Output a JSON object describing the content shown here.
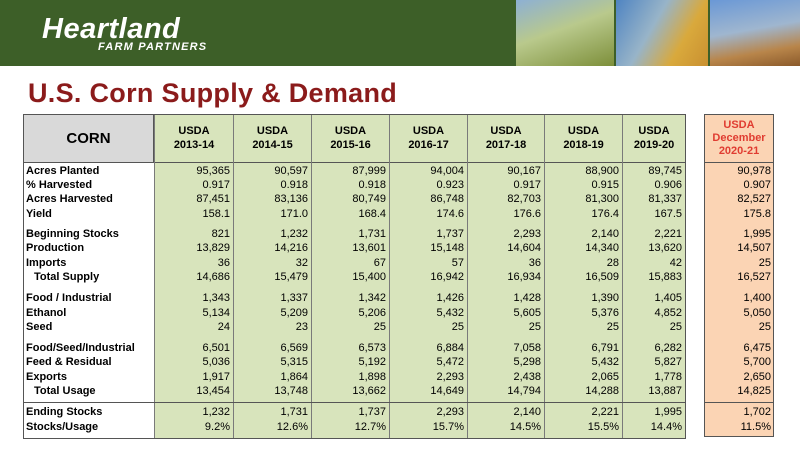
{
  "header": {
    "brand": "Heartland",
    "brand_sub": "FARM PARTNERS",
    "photos": [
      "cow-grazing-photo",
      "corn-ear-photo",
      "soybean-field-photo"
    ]
  },
  "title": "U.S. Corn Supply & Demand",
  "table": {
    "corner_label": "CORN",
    "columns": [
      {
        "line1": "USDA",
        "line2": "2013-14"
      },
      {
        "line1": "USDA",
        "line2": "2014-15"
      },
      {
        "line1": "USDA",
        "line2": "2015-16"
      },
      {
        "line1": "USDA",
        "line2": "2016-17"
      },
      {
        "line1": "USDA",
        "line2": "2017-18"
      },
      {
        "line1": "USDA",
        "line2": "2018-19"
      },
      {
        "line1": "USDA",
        "line2": "2019-20"
      }
    ],
    "projection_column": {
      "line1": "USDA",
      "line2": "December",
      "line3": "2020-21"
    },
    "rows": [
      {
        "label": "Acres Planted",
        "values": [
          "95,365",
          "90,597",
          "87,999",
          "94,004",
          "90,167",
          "88,900",
          "89,745"
        ],
        "projection": "90,978"
      },
      {
        "label": "% Harvested",
        "values": [
          "0.917",
          "0.918",
          "0.918",
          "0.923",
          "0.917",
          "0.915",
          "0.906"
        ],
        "projection": "0.907"
      },
      {
        "label": "Acres Harvested",
        "values": [
          "87,451",
          "83,136",
          "80,749",
          "86,748",
          "82,703",
          "81,300",
          "81,337"
        ],
        "projection": "82,527"
      },
      {
        "label": "Yield",
        "values": [
          "158.1",
          "171.0",
          "168.4",
          "174.6",
          "176.6",
          "176.4",
          "167.5"
        ],
        "projection": "175.8"
      },
      {
        "label": "Beginning Stocks",
        "values": [
          "821",
          "1,232",
          "1,731",
          "1,737",
          "2,293",
          "2,140",
          "2,221"
        ],
        "projection": "1,995"
      },
      {
        "label": "Production",
        "values": [
          "13,829",
          "14,216",
          "13,601",
          "15,148",
          "14,604",
          "14,340",
          "13,620"
        ],
        "projection": "14,507"
      },
      {
        "label": "Imports",
        "values": [
          "36",
          "32",
          "67",
          "57",
          "36",
          "28",
          "42"
        ],
        "projection": "25"
      },
      {
        "label": "Total Supply",
        "indent": true,
        "values": [
          "14,686",
          "15,479",
          "15,400",
          "16,942",
          "16,934",
          "16,509",
          "15,883"
        ],
        "projection": "16,527"
      },
      {
        "label": "Food / Industrial",
        "values": [
          "1,343",
          "1,337",
          "1,342",
          "1,426",
          "1,428",
          "1,390",
          "1,405"
        ],
        "projection": "1,400"
      },
      {
        "label": "Ethanol",
        "values": [
          "5,134",
          "5,209",
          "5,206",
          "5,432",
          "5,605",
          "5,376",
          "4,852"
        ],
        "projection": "5,050"
      },
      {
        "label": "Seed",
        "values": [
          "24",
          "23",
          "25",
          "25",
          "25",
          "25",
          "25"
        ],
        "projection": "25"
      },
      {
        "label": "Food/Seed/Industrial",
        "values": [
          "6,501",
          "6,569",
          "6,573",
          "6,884",
          "7,058",
          "6,791",
          "6,282"
        ],
        "projection": "6,475"
      },
      {
        "label": "Feed & Residual",
        "values": [
          "5,036",
          "5,315",
          "5,192",
          "5,472",
          "5,298",
          "5,432",
          "5,827"
        ],
        "projection": "5,700"
      },
      {
        "label": "Exports",
        "values": [
          "1,917",
          "1,864",
          "1,898",
          "2,293",
          "2,438",
          "2,065",
          "1,778"
        ],
        "projection": "2,650"
      },
      {
        "label": "Total Usage",
        "indent": true,
        "values": [
          "13,454",
          "13,748",
          "13,662",
          "14,649",
          "14,794",
          "14,288",
          "13,887"
        ],
        "projection": "14,825"
      },
      {
        "label": "Ending Stocks",
        "values": [
          "1,232",
          "1,731",
          "1,737",
          "2,293",
          "2,140",
          "2,221",
          "1,995"
        ],
        "projection": "1,702"
      },
      {
        "label": "Stocks/Usage",
        "values": [
          "9.2%",
          "12.6%",
          "12.7%",
          "15.7%",
          "14.5%",
          "15.5%",
          "14.4%"
        ],
        "projection": "11.5%"
      }
    ]
  },
  "colors": {
    "banner": "#3d5f28",
    "title": "#8b1b1b",
    "historical_fill": "#d8e4bc",
    "projection_fill": "#fbd4b4",
    "projection_header": "#e03c31"
  }
}
